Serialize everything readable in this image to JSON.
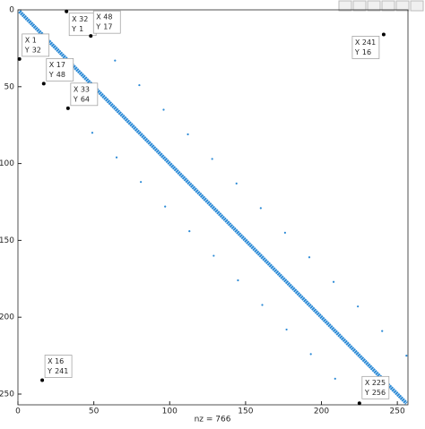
{
  "chart_data": {
    "type": "scatter",
    "xlabel": "nz = 766",
    "xlim": [
      0,
      257
    ],
    "ylim": [
      0,
      257
    ],
    "y_reversed": true,
    "xticks": [
      0,
      50,
      100,
      150,
      200,
      250
    ],
    "yticks": [
      0,
      50,
      100,
      150,
      200,
      250
    ],
    "color": "#2b8ad6",
    "diagonal": {
      "x": [
        1,
        256
      ],
      "y": [
        1,
        256
      ]
    },
    "x": [
      1,
      17,
      33,
      49,
      65,
      81,
      97,
      113,
      129,
      145,
      161,
      177,
      193,
      209,
      225,
      32,
      48,
      64,
      80,
      96,
      112,
      128,
      144,
      160,
      176,
      192,
      208,
      224,
      240,
      256,
      241,
      16
    ],
    "y": [
      32,
      48,
      64,
      80,
      96,
      112,
      128,
      144,
      160,
      176,
      192,
      208,
      224,
      240,
      256,
      1,
      17,
      33,
      49,
      65,
      81,
      97,
      113,
      129,
      145,
      161,
      177,
      193,
      209,
      225,
      16,
      241
    ],
    "tip_labels": [
      "X",
      "Y"
    ],
    "datatips": [
      {
        "x": 32,
        "y": 1
      },
      {
        "x": 48,
        "y": 17
      },
      {
        "x": 1,
        "y": 32
      },
      {
        "x": 17,
        "y": 48
      },
      {
        "x": 33,
        "y": 64
      },
      {
        "x": 241,
        "y": 16
      },
      {
        "x": 16,
        "y": 241
      },
      {
        "x": 225,
        "y": 256
      }
    ]
  }
}
